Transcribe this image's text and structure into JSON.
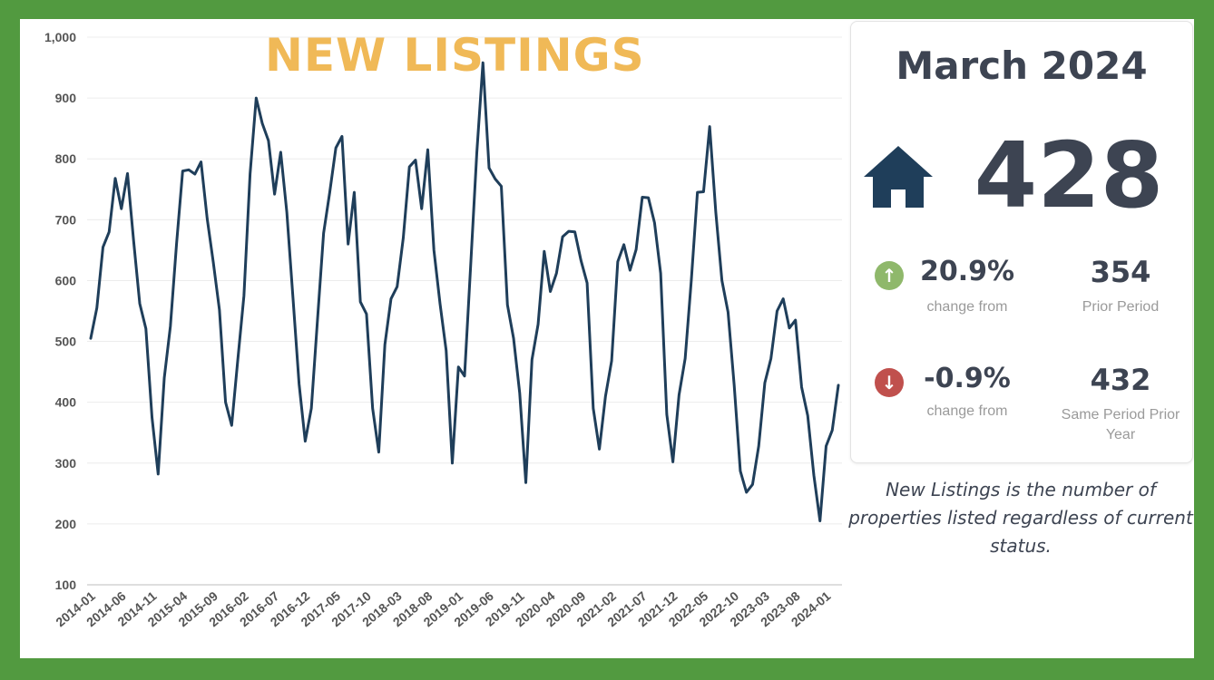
{
  "colors": {
    "border": "#529a40",
    "line": "#1f3e5a",
    "title": "#f0b957",
    "up_icon": "#8fb86b",
    "down_icon": "#c0504d",
    "house": "#1f3e5a"
  },
  "summary": {
    "period": "March 2024",
    "value": "428",
    "icon": "house-icon",
    "rows": [
      {
        "icon": "arrow-up-circle-icon",
        "percent": "20.9%",
        "percent_label": "change from",
        "number": "354",
        "number_label": "Prior Period"
      },
      {
        "icon": "arrow-down-circle-icon",
        "percent": "-0.9%",
        "percent_label": "change from",
        "number": "432",
        "number_label": "Same Period Prior Year"
      }
    ],
    "description": "New Listings is the number of properties listed regardless of current status."
  },
  "chart_data": {
    "type": "line",
    "title": "NEW LISTINGS",
    "xlabel": "",
    "ylabel": "",
    "ylim": [
      100,
      1000
    ],
    "yticks": [
      "100",
      "200",
      "300",
      "400",
      "500",
      "600",
      "700",
      "800",
      "900",
      "1,000"
    ],
    "xticks": [
      "2014-01",
      "2014-06",
      "2014-11",
      "2015-04",
      "2015-09",
      "2016-02",
      "2016-07",
      "2016-12",
      "2017-05",
      "2017-10",
      "2018-03",
      "2018-08",
      "2019-01",
      "2019-06",
      "2019-11",
      "2020-04",
      "2020-09",
      "2021-02",
      "2021-07",
      "2021-12",
      "2022-05",
      "2022-10",
      "2023-03",
      "2023-08",
      "2024-01"
    ],
    "grid": true,
    "legend": "none",
    "series": [
      {
        "x": [
          "2014-01",
          "2014-02",
          "2014-03",
          "2014-04",
          "2014-05",
          "2014-06",
          "2014-07",
          "2014-08",
          "2014-09",
          "2014-10",
          "2014-11",
          "2014-12",
          "2015-01",
          "2015-02",
          "2015-03",
          "2015-04",
          "2015-05",
          "2015-06",
          "2015-07",
          "2015-08",
          "2015-09",
          "2015-10",
          "2015-11",
          "2015-12",
          "2016-01",
          "2016-02",
          "2016-03",
          "2016-04",
          "2016-05",
          "2016-06",
          "2016-07",
          "2016-08",
          "2016-09",
          "2016-10",
          "2016-11",
          "2016-12",
          "2017-01",
          "2017-02",
          "2017-03",
          "2017-04",
          "2017-05",
          "2017-06",
          "2017-07",
          "2017-08",
          "2017-09",
          "2017-10",
          "2017-11",
          "2017-12",
          "2018-01",
          "2018-02",
          "2018-03",
          "2018-04",
          "2018-05",
          "2018-06",
          "2018-07",
          "2018-08",
          "2018-09",
          "2018-10",
          "2018-11",
          "2018-12",
          "2019-01",
          "2019-02",
          "2019-03",
          "2019-04",
          "2019-05",
          "2019-06",
          "2019-07",
          "2019-08",
          "2019-09",
          "2019-10",
          "2019-11",
          "2019-12",
          "2020-01",
          "2020-02",
          "2020-03",
          "2020-04",
          "2020-05",
          "2020-06",
          "2020-07",
          "2020-08",
          "2020-09",
          "2020-10",
          "2020-11",
          "2020-12",
          "2021-01",
          "2021-02",
          "2021-03",
          "2021-04",
          "2021-05",
          "2021-06",
          "2021-07",
          "2021-08",
          "2021-09",
          "2021-10",
          "2021-11",
          "2021-12",
          "2022-01",
          "2022-02",
          "2022-03",
          "2022-04",
          "2022-05",
          "2022-06",
          "2022-07",
          "2022-08",
          "2022-09",
          "2022-10",
          "2022-11",
          "2022-12",
          "2023-01",
          "2023-02",
          "2023-03",
          "2023-04",
          "2023-05",
          "2023-06",
          "2023-07",
          "2023-08",
          "2023-09",
          "2023-10",
          "2023-11",
          "2023-12",
          "2024-01",
          "2024-02",
          "2024-03"
        ],
        "values": [
          505,
          555,
          655,
          680,
          768,
          718,
          776,
          665,
          562,
          521,
          375,
          282,
          440,
          525,
          660,
          780,
          782,
          775,
          795,
          702,
          630,
          552,
          400,
          362,
          470,
          575,
          775,
          900,
          858,
          830,
          742,
          811,
          712,
          572,
          430,
          336,
          390,
          535,
          678,
          745,
          818,
          837,
          660,
          745,
          565,
          545,
          390,
          318,
          495,
          570,
          590,
          670,
          787,
          798,
          718,
          815,
          650,
          562,
          485,
          300,
          458,
          443,
          625,
          810,
          958,
          785,
          767,
          755,
          560,
          505,
          415,
          268,
          470,
          528,
          648,
          582,
          612,
          672,
          681,
          680,
          633,
          596,
          390,
          323,
          410,
          468,
          631,
          659,
          617,
          651,
          737,
          736,
          695,
          612,
          380,
          302,
          412,
          472,
          600,
          745,
          746,
          853,
          712,
          600,
          548,
          428,
          287,
          252,
          265,
          328,
          432,
          472,
          550,
          570,
          522,
          535,
          425,
          378,
          280,
          205,
          328,
          354,
          428
        ]
      }
    ]
  }
}
